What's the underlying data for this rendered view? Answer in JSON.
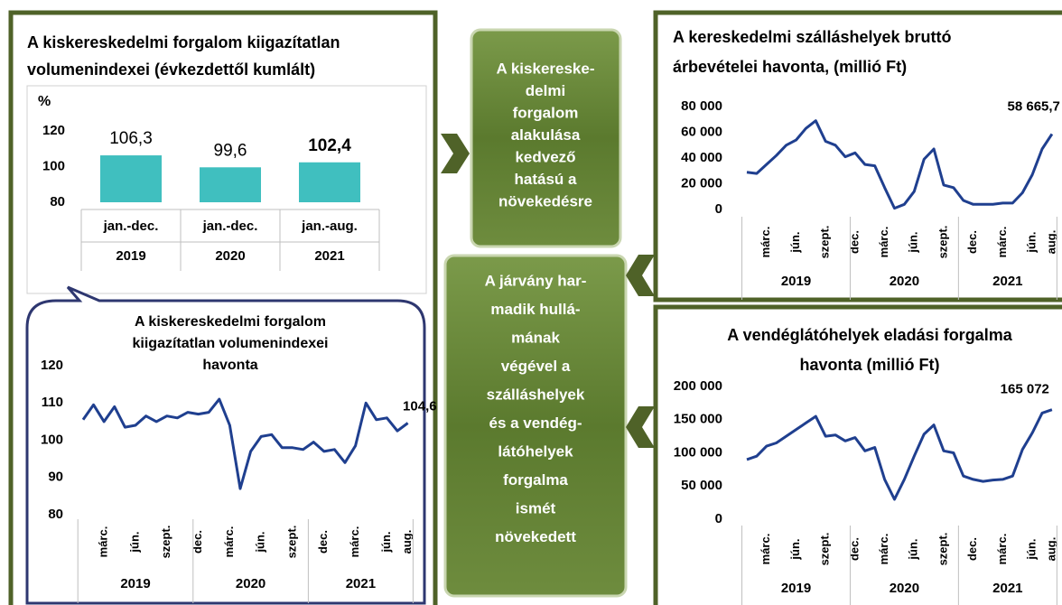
{
  "chart_data": [
    {
      "type": "bar",
      "title": [
        "A kiskereskedelmi forgalom kiigazítatlan",
        "volumenindexei (évkezdettől kumlált)"
      ],
      "y_unit": "%",
      "categories": [
        "jan.-dec.",
        "jan.-dec.",
        "jan.-aug."
      ],
      "groups": [
        "2019",
        "2020",
        "2021"
      ],
      "values": [
        106.3,
        99.6,
        102.4
      ],
      "value_labels": [
        "106,3",
        "99,6",
        "102,4"
      ],
      "value_label_bold": [
        false,
        false,
        true
      ],
      "color": "#40bfbf",
      "ylim": [
        80,
        120
      ],
      "yticks": [
        80,
        100,
        120
      ],
      "grid": false
    },
    {
      "type": "line",
      "title": [
        "A kiskereskedelmi forgalom",
        "kiigazítatlan volumenindexei",
        "havonta"
      ],
      "categories": [
        null,
        null,
        "márc.",
        null,
        null,
        "jún.",
        null,
        null,
        "szept.",
        null,
        null,
        "dec.",
        null,
        null,
        "márc.",
        null,
        null,
        "jún.",
        null,
        null,
        "szept.",
        null,
        null,
        "dec.",
        null,
        null,
        "márc.",
        null,
        null,
        "jún.",
        null,
        "aug."
      ],
      "groups": [
        "2019",
        "2020",
        "2021"
      ],
      "values": [
        105.5,
        109.5,
        105,
        109,
        103.5,
        104,
        106.5,
        105,
        106.5,
        106,
        107.5,
        107,
        107.5,
        111,
        104,
        87,
        97,
        101,
        101.5,
        98,
        98,
        97.5,
        99.5,
        97,
        97.5,
        94,
        98.5,
        110,
        105.5,
        106,
        102.5,
        104.6
      ],
      "value_labels": [
        null,
        null,
        null,
        null,
        null,
        null,
        null,
        null,
        null,
        null,
        null,
        null,
        null,
        null,
        null,
        null,
        null,
        null,
        null,
        null,
        null,
        null,
        null,
        null,
        null,
        null,
        null,
        null,
        null,
        null,
        null,
        "104,6"
      ],
      "color": "#1f3f8f",
      "ylim": [
        80,
        120
      ],
      "yticks": [
        80,
        90,
        100,
        110,
        120
      ],
      "grid": false
    },
    {
      "type": "line",
      "title": [
        "A kereskedelmi szálláshelyek bruttó",
        "árbevételei havonta, (millió Ft)"
      ],
      "categories": [
        null,
        null,
        "márc.",
        null,
        null,
        "jún.",
        null,
        null,
        "szept.",
        null,
        null,
        "dec.",
        null,
        null,
        "márc.",
        null,
        null,
        "jún.",
        null,
        null,
        "szept.",
        null,
        null,
        "dec.",
        null,
        null,
        "márc.",
        null,
        null,
        "jún.",
        null,
        "aug."
      ],
      "groups": [
        "2019",
        "2020",
        "2021"
      ],
      "values": [
        29000,
        28000,
        35000,
        42000,
        50000,
        54000,
        63000,
        69000,
        53000,
        50000,
        41000,
        44000,
        35000,
        34000,
        17000,
        1000,
        4000,
        14000,
        39000,
        47000,
        19000,
        17000,
        7000,
        4000,
        4000,
        4000,
        5000,
        5000,
        13000,
        27000,
        47000,
        58665.7
      ],
      "value_labels": [
        null,
        null,
        null,
        null,
        null,
        null,
        null,
        null,
        null,
        null,
        null,
        null,
        null,
        null,
        null,
        null,
        null,
        null,
        null,
        null,
        null,
        null,
        null,
        null,
        null,
        null,
        null,
        null,
        null,
        null,
        null,
        "58 665,7"
      ],
      "color": "#1f3f8f",
      "ylim": [
        0,
        80000
      ],
      "yticks": [
        0,
        {
          "value": 20000,
          "label": "20 000"
        },
        {
          "value": 40000,
          "label": "40 000"
        },
        {
          "value": 60000,
          "label": "60 000"
        },
        {
          "value": 80000,
          "label": "80 000"
        }
      ],
      "grid": false
    },
    {
      "type": "line",
      "title": [
        "A vendéglátóhelyek eladási forgalma",
        "havonta (millió Ft)"
      ],
      "categories": [
        null,
        null,
        "márc.",
        null,
        null,
        "jún.",
        null,
        null,
        "szept.",
        null,
        null,
        "dec.",
        null,
        null,
        "márc.",
        null,
        null,
        "jún.",
        null,
        null,
        "szept.",
        null,
        null,
        "dec.",
        null,
        null,
        "márc.",
        null,
        null,
        "jún.",
        null,
        "aug."
      ],
      "groups": [
        "2019",
        "2020",
        "2021"
      ],
      "values": [
        90000,
        95000,
        110000,
        115000,
        125000,
        135000,
        145000,
        155000,
        125000,
        127000,
        118000,
        123000,
        103000,
        108000,
        60000,
        30000,
        60000,
        95000,
        128000,
        142000,
        103000,
        100000,
        65000,
        60000,
        57000,
        59000,
        60000,
        65000,
        105000,
        130000,
        160000,
        165072
      ],
      "value_labels": [
        null,
        null,
        null,
        null,
        null,
        null,
        null,
        null,
        null,
        null,
        null,
        null,
        null,
        null,
        null,
        null,
        null,
        null,
        null,
        null,
        null,
        null,
        null,
        null,
        null,
        null,
        null,
        null,
        null,
        null,
        null,
        "165 072"
      ],
      "color": "#1f3f8f",
      "ylim": [
        0,
        200000
      ],
      "yticks": [
        0,
        {
          "value": 50000,
          "label": "50 000"
        },
        {
          "value": 100000,
          "label": "100 000"
        },
        {
          "value": 150000,
          "label": "150 000"
        },
        {
          "value": 200000,
          "label": "200 000"
        }
      ],
      "grid": false
    }
  ],
  "text_boxes": [
    {
      "lines": [
        "A kiskereske-",
        "delmi",
        "forgalom",
        "alakulása",
        "kedvező",
        "hatású a",
        "növekedésre"
      ]
    },
    {
      "lines": [
        "A járvány har-",
        "madik hullá-",
        "mának",
        "végével a",
        "szálláshelyek",
        "és a vendég-",
        "látóhelyek",
        "forgalma",
        "ismét",
        "növekedett"
      ]
    }
  ]
}
